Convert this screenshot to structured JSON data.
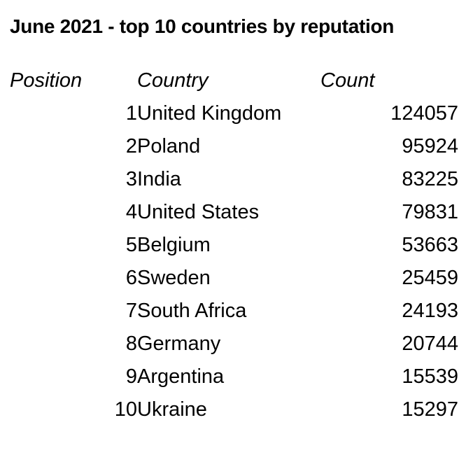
{
  "title": "June 2021 - top 10 countries by reputation",
  "colors": {
    "text": "#000000",
    "background": "#ffffff"
  },
  "table": {
    "headers": {
      "position": "Position",
      "country": "Country",
      "count": "Count"
    },
    "rows": [
      {
        "position": "1",
        "country": "United Kingdom",
        "count": "124057"
      },
      {
        "position": "2",
        "country": "Poland",
        "count": "95924"
      },
      {
        "position": "3",
        "country": "India",
        "count": "83225"
      },
      {
        "position": "4",
        "country": "United States",
        "count": "79831"
      },
      {
        "position": "5",
        "country": "Belgium",
        "count": "53663"
      },
      {
        "position": "6",
        "country": "Sweden",
        "count": "25459"
      },
      {
        "position": "7",
        "country": "South Africa",
        "count": "24193"
      },
      {
        "position": "8",
        "country": "Germany",
        "count": "20744"
      },
      {
        "position": "9",
        "country": "Argentina",
        "count": "15539"
      },
      {
        "position": "10",
        "country": "Ukraine",
        "count": "15297"
      }
    ]
  },
  "chart_data": {
    "type": "table",
    "title": "June 2021 - top 10 countries by reputation",
    "columns": [
      "Position",
      "Country",
      "Count"
    ],
    "rows": [
      [
        1,
        "United Kingdom",
        124057
      ],
      [
        2,
        "Poland",
        95924
      ],
      [
        3,
        "India",
        83225
      ],
      [
        4,
        "United States",
        79831
      ],
      [
        5,
        "Belgium",
        53663
      ],
      [
        6,
        "Sweden",
        25459
      ],
      [
        7,
        "South Africa",
        24193
      ],
      [
        8,
        "Germany",
        20744
      ],
      [
        9,
        "Argentina",
        15539
      ],
      [
        10,
        "Ukraine",
        15297
      ]
    ]
  }
}
